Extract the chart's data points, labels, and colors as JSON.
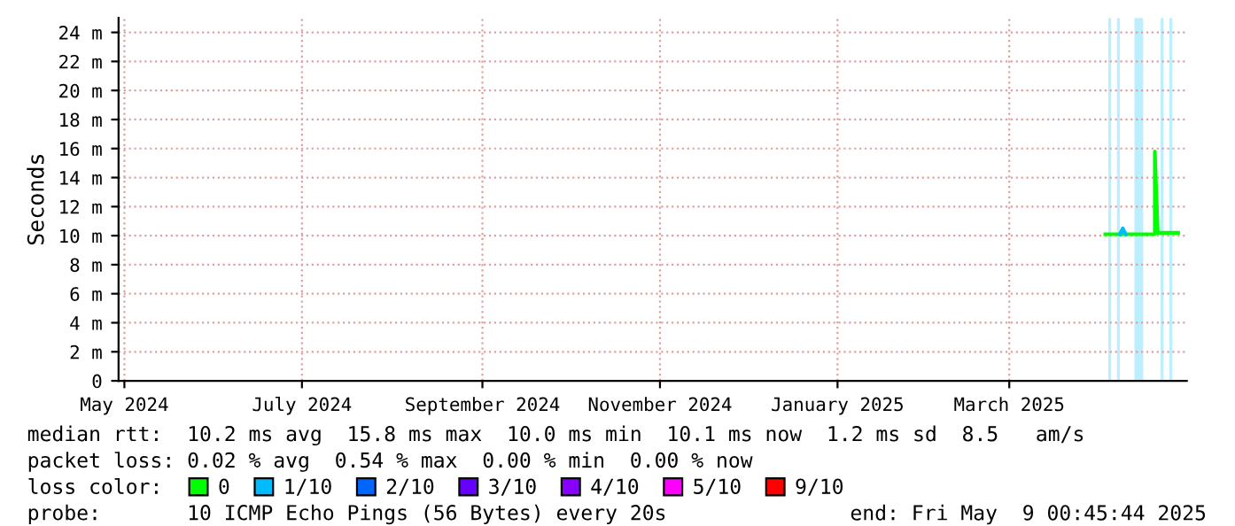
{
  "chart_data": {
    "type": "line",
    "ylabel": "Seconds",
    "x": [
      "2025-04-03",
      "2025-04-08",
      "2025-04-10",
      "2025-04-15",
      "2025-04-20",
      "2025-04-20",
      "2025-04-21",
      "2025-04-28"
    ],
    "series": [
      {
        "name": "0",
        "color": "#00ff00",
        "values": [
          10.1,
          10.1,
          10.1,
          10.1,
          10.1,
          15.8,
          10.2,
          10.2
        ]
      },
      {
        "name": "1/10",
        "color": "#00bbff",
        "x": [
          "2025-04-08",
          "2025-04-09",
          "2025-04-10"
        ],
        "values": [
          10.1,
          10.5,
          10.1
        ]
      },
      {
        "name": "2/10",
        "color": "#0066ff",
        "values": [
          null,
          null,
          null,
          null,
          null,
          null,
          null,
          null
        ]
      },
      {
        "name": "3/10",
        "color": "#6600ff",
        "values": [
          null,
          null,
          null,
          null,
          null,
          null,
          null,
          null
        ]
      },
      {
        "name": "4/10",
        "color": "#8800ff",
        "values": [
          null,
          null,
          null,
          null,
          null,
          null,
          null,
          null
        ]
      },
      {
        "name": "5/10",
        "color": "#ff00ff",
        "values": [
          null,
          null,
          null,
          null,
          null,
          null,
          null,
          null
        ]
      },
      {
        "name": "9/10",
        "color": "#ff0000",
        "values": [
          null,
          null,
          null,
          null,
          null,
          null,
          null,
          null
        ]
      }
    ],
    "legend_title": "loss color:",
    "legend": "bottom",
    "xlim": [
      "2024-04-29",
      "2025-05-01"
    ],
    "xticks": [
      {
        "value": "2024-05-01",
        "label": "May 2024"
      },
      {
        "value": "2024-07-01",
        "label": "July 2024"
      },
      {
        "value": "2024-09-01",
        "label": "September 2024"
      },
      {
        "value": "2024-11-01",
        "label": "November 2024"
      },
      {
        "value": "2025-01-01",
        "label": "January 2025"
      },
      {
        "value": "2025-03-01",
        "label": "March 2025"
      }
    ],
    "ylim": [
      0,
      25
    ],
    "yticks": [
      0,
      {
        "value": 2,
        "label": "2 m"
      },
      {
        "value": 4,
        "label": "4 m"
      },
      {
        "value": 6,
        "label": "6 m"
      },
      {
        "value": 8,
        "label": "8 m"
      },
      {
        "value": 10,
        "label": "10 m"
      },
      {
        "value": 12,
        "label": "12 m"
      },
      {
        "value": 14,
        "label": "14 m"
      },
      {
        "value": 16,
        "label": "16 m"
      },
      {
        "value": 18,
        "label": "18 m"
      },
      {
        "value": 20,
        "label": "20 m"
      },
      {
        "value": 22,
        "label": "22 m"
      },
      {
        "value": 24,
        "label": "24 m"
      }
    ],
    "grid": true,
    "bands": [
      {
        "axis": "x",
        "from": "2025-04-04",
        "to": "2025-04-05",
        "color": "#bbeeff"
      },
      {
        "axis": "x",
        "from": "2025-04-07",
        "to": "2025-04-08",
        "color": "#bbeeff"
      },
      {
        "axis": "x",
        "from": "2025-04-13",
        "to": "2025-04-16",
        "color": "#bbeeff"
      },
      {
        "axis": "x",
        "from": "2025-04-22",
        "to": "2025-04-23",
        "color": "#bbeeff"
      },
      {
        "axis": "x",
        "from": "2025-04-25",
        "to": "2025-04-26",
        "color": "#bbeeff"
      }
    ],
    "annotations": [
      "median rtt:  10.2 ms avg  15.8 ms max  10.0 ms min  10.1 ms now  1.2 ms sd  8.5   am/s",
      "packet loss: 0.02 % avg  0.54 % max  0.00 % min  0.00 % now",
      "probe:       10 ICMP Echo Pings (56 Bytes) every 20s",
      "end: Fri May  9 00:45:44 2025"
    ]
  }
}
